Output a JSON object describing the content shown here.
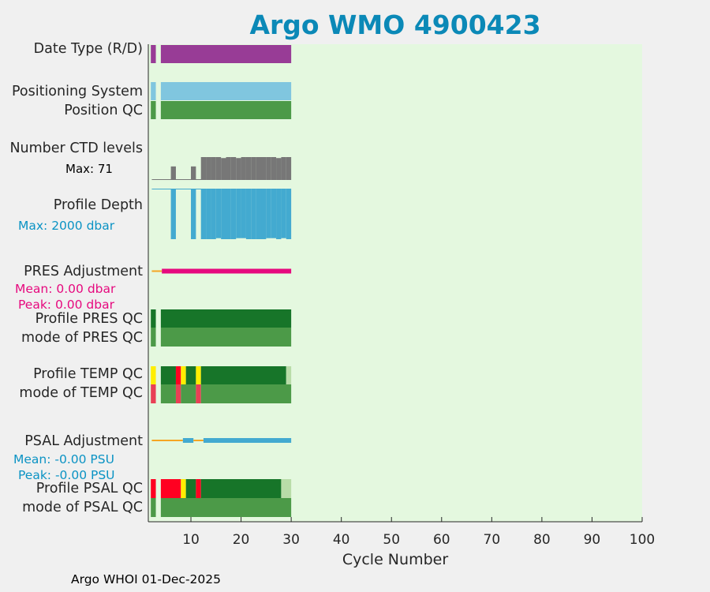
{
  "title": "Argo WMO 4900423",
  "footer": "Argo WHOI 01-Dec-2025",
  "colors": {
    "plot_bg": "#e4f8df",
    "title": "#0b89b7",
    "purple": "#983c96",
    "light_blue": "#80c6df",
    "green": "#4c9a48",
    "dark_green": "#177529",
    "pale_green": "#b9dca8",
    "gray": "#777777",
    "depth_blue": "#43aad0",
    "magenta": "#e6097e",
    "orange": "#f5a623",
    "yellow": "#ffee00",
    "red": "#ff0021",
    "light_red": "#e94055",
    "cyan_text": "#0b93c4"
  },
  "rows": [
    {
      "label": "Date Type (R/D)"
    },
    {
      "label": "Positioning System"
    },
    {
      "label": "Position QC"
    },
    {
      "label": "Number CTD levels"
    },
    {
      "label": "Profile Depth"
    },
    {
      "label": "PRES Adjustment"
    },
    {
      "label": "Profile PRES QC"
    },
    {
      "label": "mode of PRES QC"
    },
    {
      "label": "Profile TEMP QC"
    },
    {
      "label": "mode of TEMP QC"
    },
    {
      "label": "PSAL Adjustment"
    },
    {
      "label": "Profile PSAL QC"
    },
    {
      "label": "mode of PSAL QC"
    }
  ],
  "notes": {
    "ctd_max": "Max: 71",
    "depth_max": "Max: 2000 dbar",
    "pres_mean": "Mean: 0.00 dbar",
    "pres_peak": "Peak: 0.00 dbar",
    "psal_mean": "Mean: -0.00 PSU",
    "psal_peak": "Peak: -0.00 PSU"
  },
  "chart_data": {
    "type": "timeline",
    "xlabel": "Cycle Number",
    "xlim": [
      1.5,
      100
    ],
    "xticks": [
      10,
      20,
      30,
      40,
      50,
      60,
      70,
      80,
      90,
      100
    ],
    "grid": false,
    "date_type": [
      {
        "from": 2,
        "to": 3,
        "color": "purple"
      },
      {
        "from": 4,
        "to": 30,
        "color": "purple"
      }
    ],
    "positioning_system": [
      {
        "from": 2,
        "to": 3,
        "color": "light_blue"
      },
      {
        "from": 4,
        "to": 30,
        "color": "light_blue"
      }
    ],
    "position_qc": [
      {
        "from": 2,
        "to": 3,
        "color": "green"
      },
      {
        "from": 4,
        "to": 30,
        "color": "green"
      }
    ],
    "ctd_levels": {
      "max": 71,
      "values": [
        {
          "cycle": 7,
          "value": 42
        },
        {
          "cycle": 11,
          "value": 42
        },
        {
          "cycle": 13,
          "value": 71
        },
        {
          "cycle": 14,
          "value": 71
        },
        {
          "cycle": 15,
          "value": 71
        },
        {
          "cycle": 16,
          "value": 71
        },
        {
          "cycle": 17,
          "value": 68
        },
        {
          "cycle": 18,
          "value": 71
        },
        {
          "cycle": 19,
          "value": 71
        },
        {
          "cycle": 20,
          "value": 68
        },
        {
          "cycle": 21,
          "value": 71
        },
        {
          "cycle": 22,
          "value": 71
        },
        {
          "cycle": 23,
          "value": 71
        },
        {
          "cycle": 24,
          "value": 71
        },
        {
          "cycle": 25,
          "value": 71
        },
        {
          "cycle": 26,
          "value": 71
        },
        {
          "cycle": 27,
          "value": 71
        },
        {
          "cycle": 28,
          "value": 68
        },
        {
          "cycle": 29,
          "value": 71
        },
        {
          "cycle": 30,
          "value": 71
        }
      ]
    },
    "profile_depth": {
      "max_dbar": 2000,
      "values": [
        {
          "cycle": 7,
          "value": 2000
        },
        {
          "cycle": 11,
          "value": 2000
        },
        {
          "cycle": 13,
          "value": 2000
        },
        {
          "cycle": 14,
          "value": 2000
        },
        {
          "cycle": 15,
          "value": 2000
        },
        {
          "cycle": 16,
          "value": 1960
        },
        {
          "cycle": 17,
          "value": 2000
        },
        {
          "cycle": 18,
          "value": 2000
        },
        {
          "cycle": 19,
          "value": 2000
        },
        {
          "cycle": 20,
          "value": 1960
        },
        {
          "cycle": 21,
          "value": 1960
        },
        {
          "cycle": 22,
          "value": 2000
        },
        {
          "cycle": 23,
          "value": 2000
        },
        {
          "cycle": 24,
          "value": 2000
        },
        {
          "cycle": 25,
          "value": 2000
        },
        {
          "cycle": 26,
          "value": 1960
        },
        {
          "cycle": 27,
          "value": 1960
        },
        {
          "cycle": 28,
          "value": 2000
        },
        {
          "cycle": 29,
          "value": 1960
        },
        {
          "cycle": 30,
          "value": 2000
        }
      ]
    },
    "pres_adjustment": {
      "mean": 0.0,
      "peak": 0.0,
      "segments": [
        {
          "from": 2.2,
          "to": 4.2,
          "color": "orange",
          "thin": true
        },
        {
          "from": 4.2,
          "to": 30,
          "color": "magenta"
        }
      ]
    },
    "profile_pres_qc": [
      {
        "from": 2,
        "to": 3,
        "color": "dark_green"
      },
      {
        "from": 4,
        "to": 30,
        "color": "dark_green"
      }
    ],
    "mode_pres_qc": [
      {
        "from": 2,
        "to": 3,
        "color": "green"
      },
      {
        "from": 4,
        "to": 30,
        "color": "green"
      }
    ],
    "profile_temp_qc": [
      {
        "from": 2,
        "to": 3,
        "color": "yellow"
      },
      {
        "from": 4,
        "to": 7,
        "color": "dark_green"
      },
      {
        "from": 7,
        "to": 8,
        "color": "red"
      },
      {
        "from": 8,
        "to": 9,
        "color": "yellow"
      },
      {
        "from": 9,
        "to": 11,
        "color": "dark_green"
      },
      {
        "from": 11,
        "to": 12,
        "color": "yellow"
      },
      {
        "from": 12,
        "to": 29,
        "color": "dark_green"
      },
      {
        "from": 29,
        "to": 30,
        "color": "pale_green"
      }
    ],
    "mode_temp_qc": [
      {
        "from": 2,
        "to": 3,
        "color": "light_red"
      },
      {
        "from": 4,
        "to": 7,
        "color": "green"
      },
      {
        "from": 7,
        "to": 8,
        "color": "light_red"
      },
      {
        "from": 8,
        "to": 11,
        "color": "green"
      },
      {
        "from": 11,
        "to": 12,
        "color": "light_red"
      },
      {
        "from": 12,
        "to": 30,
        "color": "green"
      }
    ],
    "psal_adjustment": {
      "mean": -0.0,
      "peak": -0.0,
      "segments": [
        {
          "from": 2.2,
          "to": 8.4,
          "color": "orange",
          "thin": true
        },
        {
          "from": 8.4,
          "to": 10.5,
          "color": "depth_blue"
        },
        {
          "from": 10.5,
          "to": 12.5,
          "color": "orange",
          "thin": true
        },
        {
          "from": 12.5,
          "to": 30,
          "color": "depth_blue"
        }
      ]
    },
    "profile_psal_qc": [
      {
        "from": 2,
        "to": 3,
        "color": "red"
      },
      {
        "from": 4,
        "to": 8,
        "color": "red"
      },
      {
        "from": 8,
        "to": 9,
        "color": "yellow"
      },
      {
        "from": 9,
        "to": 11,
        "color": "dark_green"
      },
      {
        "from": 11,
        "to": 12,
        "color": "red"
      },
      {
        "from": 12,
        "to": 28,
        "color": "dark_green"
      },
      {
        "from": 28,
        "to": 30,
        "color": "pale_green"
      }
    ],
    "mode_psal_qc": [
      {
        "from": 2,
        "to": 3,
        "color": "green"
      },
      {
        "from": 4,
        "to": 30,
        "color": "green"
      }
    ]
  }
}
